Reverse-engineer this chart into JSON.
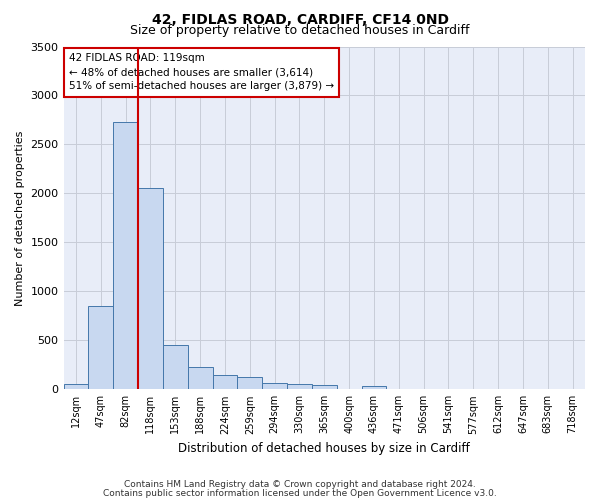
{
  "title": "42, FIDLAS ROAD, CARDIFF, CF14 0ND",
  "subtitle": "Size of property relative to detached houses in Cardiff",
  "xlabel": "Distribution of detached houses by size in Cardiff",
  "ylabel": "Number of detached properties",
  "categories": [
    "12sqm",
    "47sqm",
    "82sqm",
    "118sqm",
    "153sqm",
    "188sqm",
    "224sqm",
    "259sqm",
    "294sqm",
    "330sqm",
    "365sqm",
    "400sqm",
    "436sqm",
    "471sqm",
    "506sqm",
    "541sqm",
    "577sqm",
    "612sqm",
    "647sqm",
    "683sqm",
    "718sqm"
  ],
  "values": [
    55,
    850,
    2730,
    2060,
    450,
    225,
    150,
    130,
    65,
    50,
    45,
    0,
    30,
    0,
    0,
    0,
    0,
    0,
    0,
    0,
    0
  ],
  "bar_color": "#c8d8f0",
  "bar_edge_color": "#4477aa",
  "grid_color": "#c8ccd8",
  "background_color": "#e8edf8",
  "vline_color": "#cc0000",
  "annotation_text": "42 FIDLAS ROAD: 119sqm\n← 48% of detached houses are smaller (3,614)\n51% of semi-detached houses are larger (3,879) →",
  "annotation_box_color": "white",
  "annotation_box_edge": "#cc0000",
  "ylim": [
    0,
    3500
  ],
  "yticks": [
    0,
    500,
    1000,
    1500,
    2000,
    2500,
    3000,
    3500
  ],
  "footnote_line1": "Contains HM Land Registry data © Crown copyright and database right 2024.",
  "footnote_line2": "Contains public sector information licensed under the Open Government Licence v3.0."
}
